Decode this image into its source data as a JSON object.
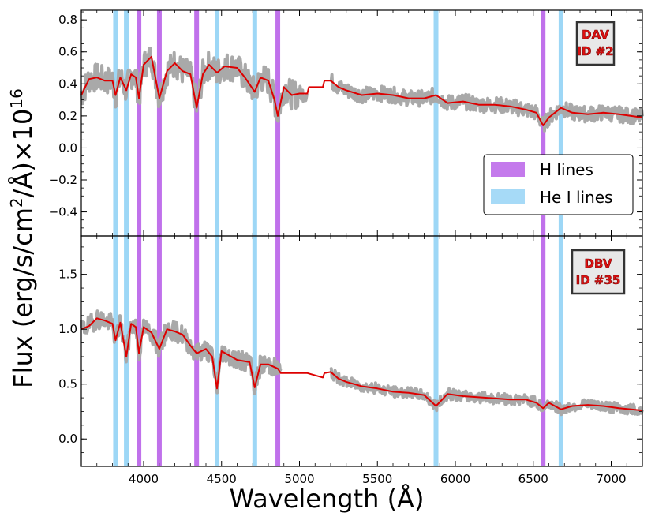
{
  "colors": {
    "h_line": "#b04ee6",
    "he_line": "#5cbcf0",
    "model": "#dd0000",
    "spectrum": "#a9a9a9"
  },
  "axes": {
    "xlabel": "Wavelength (Å)",
    "ylabel_main": "Flux (erg/s/cm",
    "ylabel_sup1": "2",
    "ylabel_mid": "/Å)×10",
    "ylabel_sup2": "16"
  },
  "legend": {
    "h_label": "H lines",
    "he_label": "He I lines"
  },
  "chart_data": [
    {
      "type": "line",
      "panel": "top",
      "badge": {
        "line1": "DAV",
        "line2": "ID #2"
      },
      "xlim": [
        3600,
        7200
      ],
      "ylim": [
        -0.55,
        0.86
      ],
      "x_ticks": [
        4000,
        4500,
        5000,
        5500,
        6000,
        6500,
        7000
      ],
      "x_tick_labels": [
        "4000",
        "4500",
        "5000",
        "5500",
        "6000",
        "6500",
        "7000"
      ],
      "y_ticks": [
        -0.4,
        -0.2,
        0.0,
        0.2,
        0.4,
        0.6,
        0.8
      ],
      "y_tick_labels": [
        "−0.4",
        "−0.2",
        "0.0",
        "0.2",
        "0.4",
        "0.6",
        "0.8"
      ],
      "h_lines": [
        3970,
        4101,
        4340,
        4861,
        6563
      ],
      "he_lines": [
        3820,
        3889,
        4471,
        4713,
        5876,
        6678
      ],
      "series": [
        {
          "name": "model",
          "x": [
            3600,
            3650,
            3700,
            3750,
            3800,
            3820,
            3850,
            3889,
            3920,
            3950,
            3970,
            4000,
            4050,
            4101,
            4150,
            4200,
            4250,
            4300,
            4340,
            4380,
            4420,
            4471,
            4520,
            4600,
            4650,
            4713,
            4750,
            4800,
            4840,
            4861,
            4900,
            4950,
            5000,
            5050,
            5060,
            5150,
            5160,
            5200,
            5250,
            5300,
            5400,
            5500,
            5600,
            5700,
            5800,
            5876,
            5950,
            6050,
            6150,
            6250,
            6350,
            6450,
            6520,
            6563,
            6600,
            6678,
            6750,
            6850,
            6950,
            7050,
            7200
          ],
          "y": [
            0.33,
            0.43,
            0.44,
            0.42,
            0.42,
            0.33,
            0.44,
            0.36,
            0.46,
            0.44,
            0.31,
            0.52,
            0.57,
            0.31,
            0.48,
            0.53,
            0.48,
            0.46,
            0.25,
            0.46,
            0.52,
            0.47,
            0.51,
            0.5,
            0.44,
            0.35,
            0.44,
            0.42,
            0.3,
            0.2,
            0.38,
            0.33,
            0.34,
            0.34,
            0.38,
            0.38,
            0.42,
            0.42,
            0.38,
            0.36,
            0.33,
            0.34,
            0.33,
            0.31,
            0.31,
            0.33,
            0.28,
            0.29,
            0.27,
            0.27,
            0.26,
            0.24,
            0.22,
            0.14,
            0.19,
            0.25,
            0.22,
            0.21,
            0.22,
            0.21,
            0.19
          ]
        }
      ]
    },
    {
      "type": "line",
      "panel": "bottom",
      "badge": {
        "line1": "DBV",
        "line2": "ID #35"
      },
      "xlim": [
        3600,
        7200
      ],
      "ylim": [
        -0.25,
        1.85
      ],
      "x_ticks": [
        4000,
        4500,
        5000,
        5500,
        6000,
        6500,
        7000
      ],
      "x_tick_labels": [
        "4000",
        "4500",
        "5000",
        "5500",
        "6000",
        "6500",
        "7000"
      ],
      "y_ticks": [
        0.0,
        0.5,
        1.0,
        1.5
      ],
      "y_tick_labels": [
        "0.0",
        "0.5",
        "1.0",
        "1.5"
      ],
      "h_lines": [
        3970,
        4101,
        4340,
        4861,
        6563
      ],
      "he_lines": [
        3820,
        3889,
        4471,
        4713,
        5876,
        6678
      ],
      "series": [
        {
          "name": "model",
          "x": [
            3600,
            3650,
            3700,
            3750,
            3800,
            3820,
            3850,
            3889,
            3920,
            3950,
            3970,
            4000,
            4050,
            4101,
            4150,
            4200,
            4250,
            4300,
            4340,
            4400,
            4440,
            4471,
            4500,
            4600,
            4680,
            4713,
            4750,
            4800,
            4861,
            4880,
            5000,
            5050,
            5150,
            5160,
            5200,
            5250,
            5300,
            5400,
            5500,
            5600,
            5700,
            5800,
            5876,
            5950,
            6050,
            6150,
            6250,
            6350,
            6450,
            6520,
            6563,
            6600,
            6678,
            6750,
            6850,
            6950,
            7050,
            7200
          ],
          "y": [
            1.0,
            1.03,
            1.1,
            1.08,
            1.05,
            0.9,
            1.06,
            0.75,
            1.05,
            1.02,
            0.78,
            1.02,
            0.97,
            0.82,
            1.0,
            0.98,
            0.95,
            0.85,
            0.78,
            0.82,
            0.75,
            0.46,
            0.8,
            0.72,
            0.7,
            0.47,
            0.68,
            0.68,
            0.64,
            0.6,
            0.6,
            0.6,
            0.56,
            0.6,
            0.61,
            0.55,
            0.52,
            0.48,
            0.46,
            0.43,
            0.42,
            0.4,
            0.3,
            0.41,
            0.39,
            0.38,
            0.37,
            0.36,
            0.36,
            0.33,
            0.28,
            0.33,
            0.27,
            0.3,
            0.31,
            0.3,
            0.28,
            0.26
          ]
        }
      ]
    }
  ]
}
